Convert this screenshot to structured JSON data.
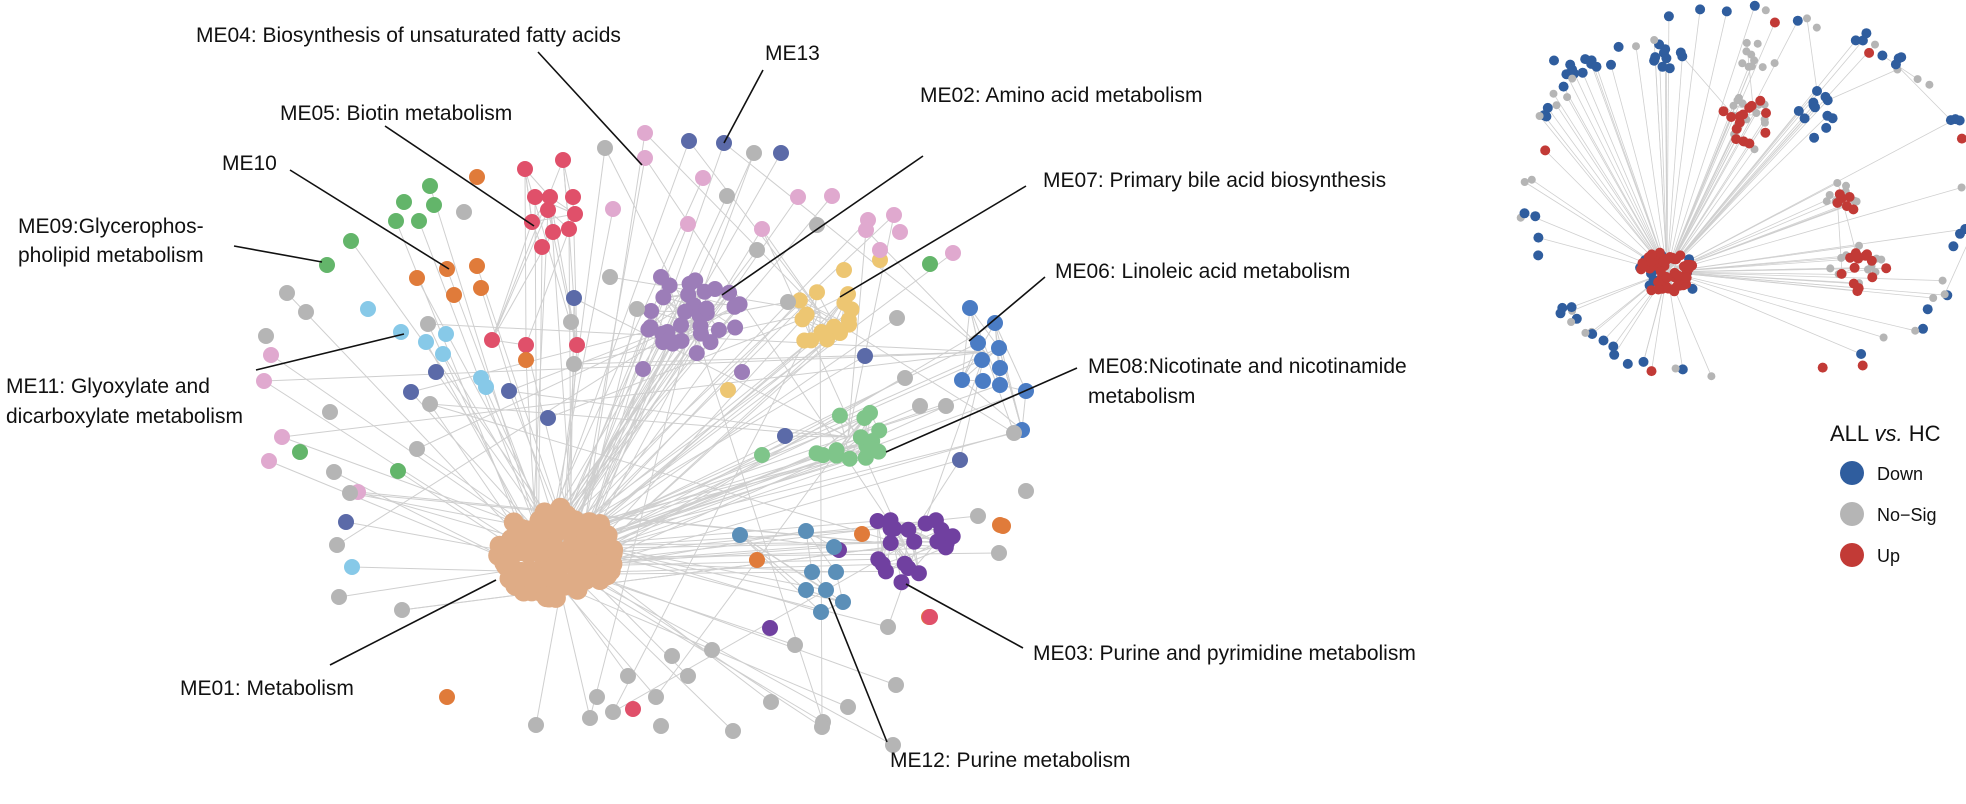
{
  "colors": {
    "edge": "#cfcfcf",
    "leader": "#111111",
    "nosig": "#b5b5b5",
    "down": "#2f5d9e",
    "up": "#c23a36",
    "ME01": "#dfac86",
    "ME02": "#9c7db8",
    "ME03": "#7040a0",
    "ME05": "#e0506a",
    "ME06": "#4a7cc4",
    "ME07": "#edc672",
    "ME08": "#7fc58a",
    "ME09": "#63b56a",
    "ME10": "#e07b3a",
    "ME11": "#87c9e8",
    "ME12": "#5b8fb8",
    "ME13": "#5b6aa8",
    "pink": "#e0a9cf"
  },
  "labels": [
    {
      "id": "ME04",
      "text": "ME04: Biosynthesis of unsaturated fatty acids"
    },
    {
      "id": "ME13",
      "text": "ME13"
    },
    {
      "id": "ME02",
      "text": "ME02: Amino acid metabolism"
    },
    {
      "id": "ME05",
      "text": "ME05: Biotin metabolism"
    },
    {
      "id": "ME10",
      "text": "ME10"
    },
    {
      "id": "ME07",
      "text": "ME07: Primary bile acid biosynthesis"
    },
    {
      "id": "ME09a",
      "text": "ME09:Glycerophos-"
    },
    {
      "id": "ME09b",
      "text": "pholipid metabolism"
    },
    {
      "id": "ME06",
      "text": "ME06: Linoleic acid metabolism"
    },
    {
      "id": "ME08a",
      "text": "ME08:Nicotinate and nicotinamide"
    },
    {
      "id": "ME08b",
      "text": "metabolism"
    },
    {
      "id": "ME11a",
      "text": "ME11: Glyoxylate and"
    },
    {
      "id": "ME11b",
      "text": "dicarboxylate metabolism"
    },
    {
      "id": "ME03",
      "text": "ME03: Purine and pyrimidine metabolism"
    },
    {
      "id": "ME01",
      "text": "ME01: Metabolism"
    },
    {
      "id": "ME12",
      "text": "ME12: Purine metabolism"
    }
  ],
  "legend": {
    "title_pre": "ALL ",
    "title_ital": "vs.",
    "title_post": " HC",
    "items": [
      {
        "label": "Down",
        "color": "#2f5d9e"
      },
      {
        "label": "No−Sig",
        "color": "#b5b5b5"
      },
      {
        "label": "Up",
        "color": "#c23a36"
      }
    ]
  }
}
